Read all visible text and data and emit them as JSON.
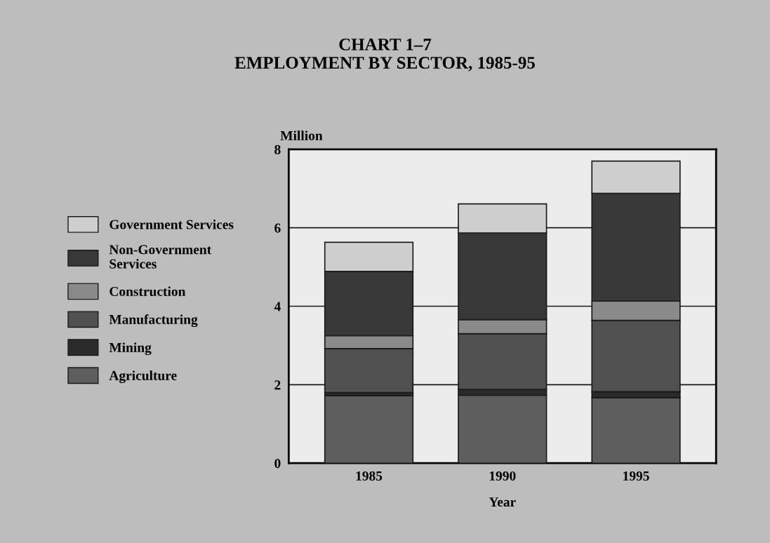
{
  "chart_data": {
    "type": "bar",
    "title": "CHART 1–7\nEMPLOYMENT BY SECTOR, 1985-95",
    "xlabel": "Year",
    "ylabel": "Million",
    "categories": [
      "1985",
      "1990",
      "1995"
    ],
    "stacked": true,
    "series": [
      {
        "name": "Agriculture",
        "color": "#5e5e5e",
        "values": [
          1.72,
          1.73,
          1.67
        ]
      },
      {
        "name": "Mining",
        "color": "#2a2a2a",
        "values": [
          0.08,
          0.15,
          0.15
        ]
      },
      {
        "name": "Manufacturing",
        "color": "#505050",
        "values": [
          1.12,
          1.42,
          1.82
        ]
      },
      {
        "name": "Construction",
        "color": "#8a8a8a",
        "values": [
          0.33,
          0.36,
          0.49
        ]
      },
      {
        "name": "Non-Government\nServices",
        "color": "#383838",
        "values": [
          1.64,
          2.21,
          2.75
        ]
      },
      {
        "name": "Government Services",
        "color": "#cfcfcf",
        "values": [
          0.74,
          0.74,
          0.82
        ]
      }
    ],
    "ylim": [
      0,
      8
    ],
    "yticks": [
      0,
      2,
      4,
      6,
      8
    ],
    "grid": "y",
    "legend": "left"
  }
}
